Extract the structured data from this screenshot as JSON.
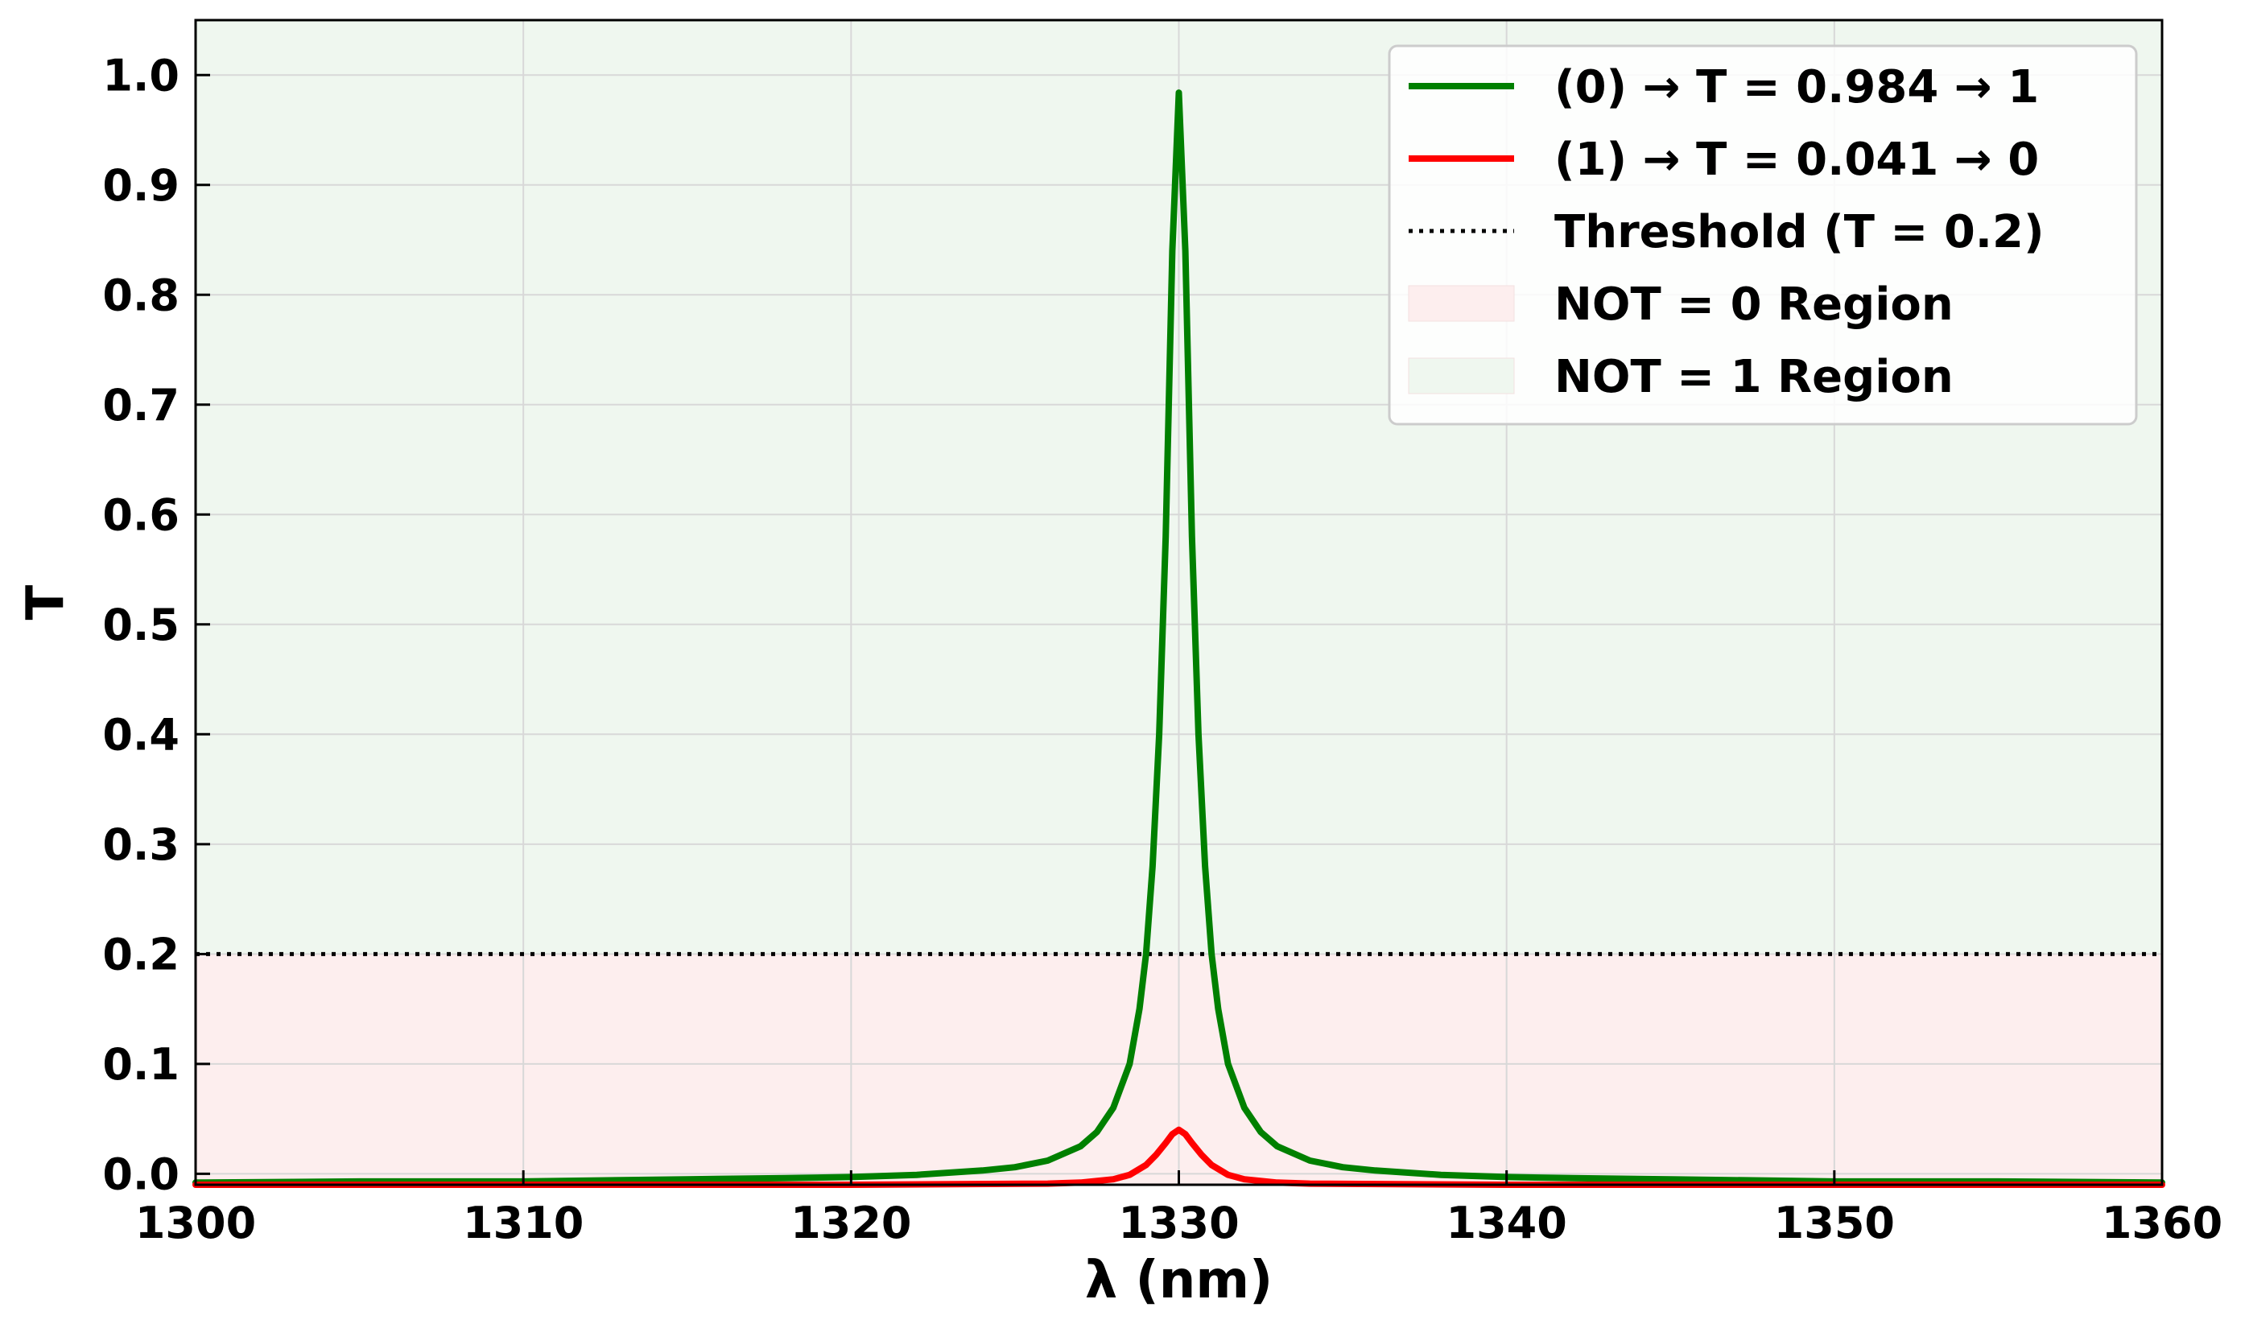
{
  "chart_data": {
    "type": "line",
    "xlabel": "λ (nm)",
    "ylabel": "T",
    "xlim": [
      1300,
      1360
    ],
    "ylim": [
      -0.01,
      1.05
    ],
    "x_ticks": [
      "1300",
      "1310",
      "1320",
      "1330",
      "1340",
      "1350",
      "1360"
    ],
    "y_ticks": [
      "0.0",
      "0.1",
      "0.2",
      "0.3",
      "0.4",
      "0.5",
      "0.6",
      "0.7",
      "0.8",
      "0.9",
      "1.0"
    ],
    "grid": true,
    "legend_position": "top-right",
    "threshold": {
      "label": "Threshold (T = 0.2)",
      "value": 0.2,
      "color": "#000000",
      "style": "dotted"
    },
    "regions": [
      {
        "label": "NOT = 0 Region",
        "from": -0.01,
        "to": 0.2,
        "color": "#fdeeee"
      },
      {
        "label": "NOT = 1 Region",
        "from": 0.2,
        "to": 1.05,
        "color": "#eff7ef"
      }
    ],
    "series": [
      {
        "name": "(0) → T = 0.984 → 1",
        "color": "#008000",
        "x": [
          1300,
          1305,
          1310,
          1315,
          1318,
          1320,
          1322,
          1324,
          1325,
          1326,
          1327,
          1327.5,
          1328,
          1328.5,
          1328.8,
          1329,
          1329.2,
          1329.4,
          1329.6,
          1329.8,
          1330,
          1330.2,
          1330.4,
          1330.6,
          1330.8,
          1331,
          1331.2,
          1331.5,
          1332,
          1332.5,
          1333,
          1334,
          1335,
          1336,
          1338,
          1340,
          1342,
          1345,
          1350,
          1355,
          1360
        ],
        "values": [
          -0.008,
          -0.007,
          -0.007,
          -0.005,
          -0.004,
          -0.003,
          -0.001,
          0.003,
          0.006,
          0.012,
          0.025,
          0.038,
          0.06,
          0.1,
          0.15,
          0.2,
          0.28,
          0.4,
          0.58,
          0.84,
          0.984,
          0.84,
          0.58,
          0.4,
          0.28,
          0.2,
          0.15,
          0.1,
          0.06,
          0.038,
          0.025,
          0.012,
          0.006,
          0.003,
          -0.001,
          -0.003,
          -0.004,
          -0.005,
          -0.007,
          -0.007,
          -0.008
        ]
      },
      {
        "name": "(1) → T = 0.041 → 0",
        "color": "#ff0000",
        "x": [
          1300,
          1320,
          1326,
          1327,
          1328,
          1328.5,
          1329,
          1329.3,
          1329.6,
          1329.8,
          1330,
          1330.2,
          1330.4,
          1330.7,
          1331,
          1331.5,
          1332,
          1333,
          1334,
          1340,
          1360
        ],
        "values": [
          -0.01,
          -0.01,
          -0.009,
          -0.008,
          -0.005,
          -0.001,
          0.008,
          0.017,
          0.028,
          0.036,
          0.04,
          0.036,
          0.028,
          0.017,
          0.008,
          -0.001,
          -0.005,
          -0.008,
          -0.009,
          -0.01,
          -0.01
        ]
      }
    ]
  }
}
